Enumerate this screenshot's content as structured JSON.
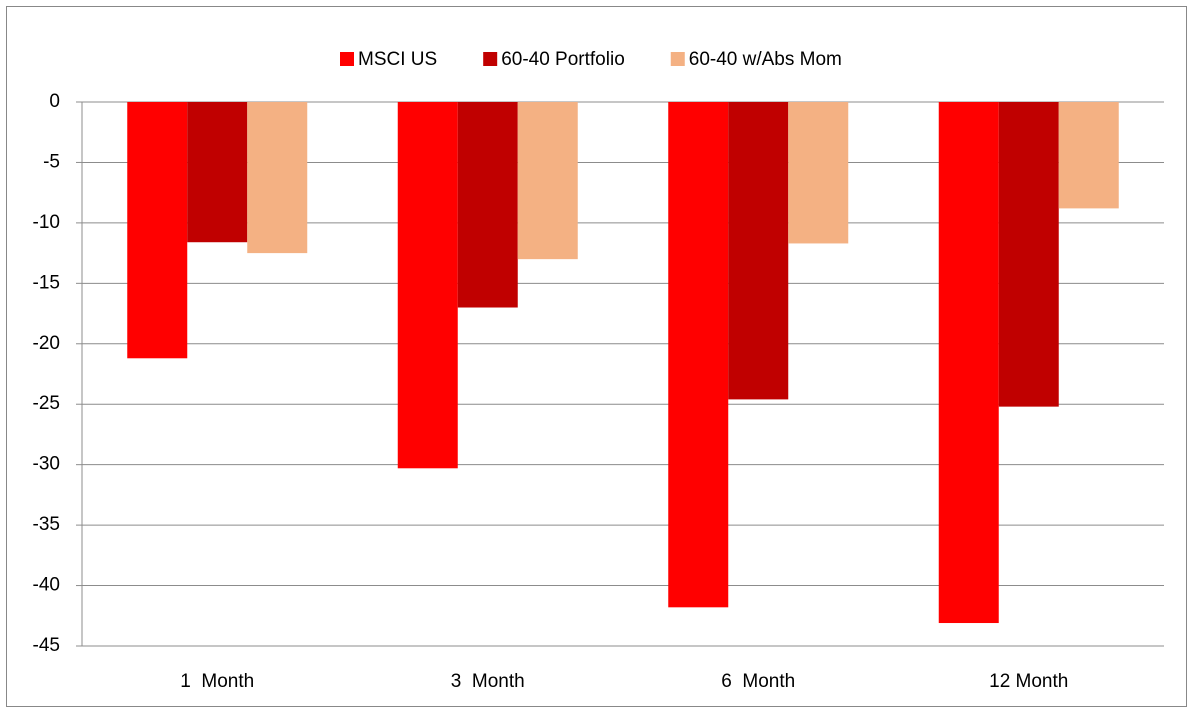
{
  "chart_data": {
    "type": "bar",
    "categories": [
      "1  Month",
      "3  Month",
      "6  Month",
      "12 Month"
    ],
    "series": [
      {
        "name": "MSCI US",
        "color": "#ff0000",
        "values": [
          -21.2,
          -30.3,
          -41.8,
          -43.1
        ]
      },
      {
        "name": "60-40 Portfolio",
        "color": "#c00000",
        "values": [
          -11.6,
          -17.0,
          -24.6,
          -25.2
        ]
      },
      {
        "name": "60-40 w/Abs Mom",
        "color": "#f4b183",
        "values": [
          -12.5,
          -13.0,
          -11.7,
          -8.8
        ]
      }
    ],
    "ylim": [
      -45,
      0
    ],
    "yticks": [
      0,
      -5,
      -10,
      -15,
      -20,
      -25,
      -30,
      -35,
      -40,
      -45
    ],
    "grid": true,
    "legend": "top"
  }
}
